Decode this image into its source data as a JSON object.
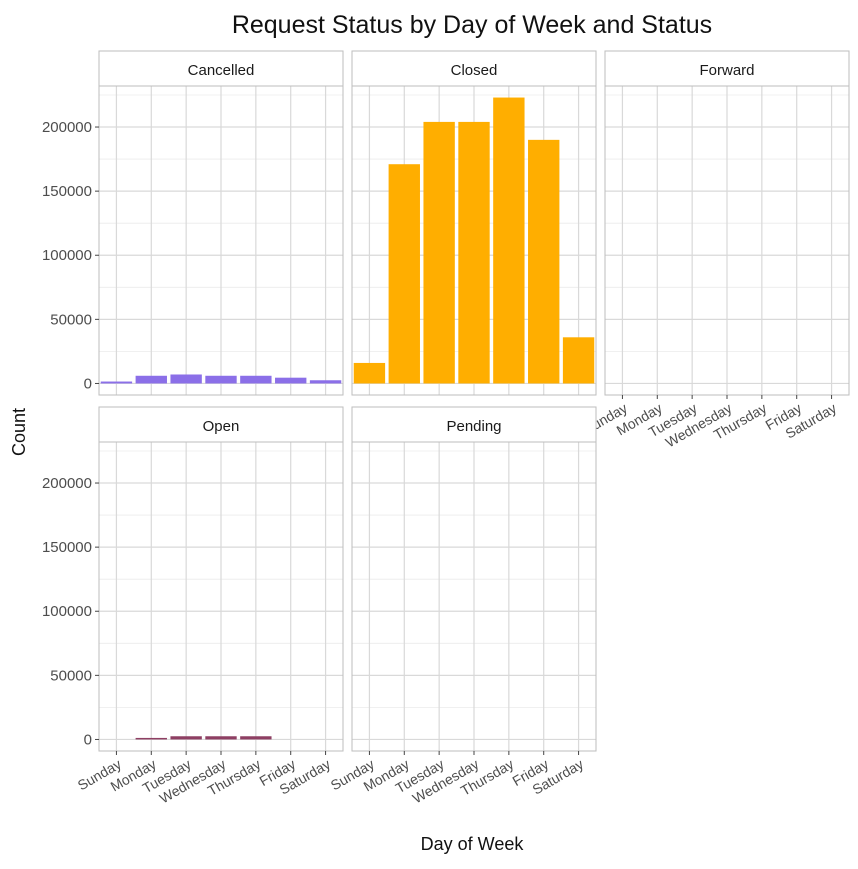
{
  "chart_data": {
    "type": "bar",
    "title": "Request Status by Day of Week and Status",
    "xlabel": "Day of Week",
    "ylabel": "Count",
    "categories": [
      "Sunday",
      "Monday",
      "Tuesday",
      "Wednesday",
      "Thursday",
      "Friday",
      "Saturday"
    ],
    "ylim": [
      -9000,
      232000
    ],
    "yticks": [
      0,
      50000,
      100000,
      150000,
      200000
    ],
    "ytick_labels": [
      "0",
      "50000",
      "100000",
      "150000",
      "200000"
    ],
    "grid": true,
    "facets": [
      {
        "name": "Cancelled",
        "color": "#8B6FE8",
        "values": [
          1500,
          6000,
          7000,
          6000,
          6000,
          4500,
          2500
        ]
      },
      {
        "name": "Closed",
        "color": "#FFAE00",
        "values": [
          16000,
          171000,
          204000,
          204000,
          223000,
          190000,
          36000
        ]
      },
      {
        "name": "Forward",
        "color": "#5B8DEF",
        "values": [
          0,
          0,
          0,
          0,
          0,
          0,
          0
        ]
      },
      {
        "name": "Open",
        "color": "#8E3F63",
        "values": [
          0,
          1200,
          2500,
          2500,
          2500,
          0,
          0
        ]
      },
      {
        "name": "Pending",
        "color": "#3FA37A",
        "values": [
          0,
          0,
          0,
          0,
          0,
          0,
          0
        ]
      }
    ]
  }
}
